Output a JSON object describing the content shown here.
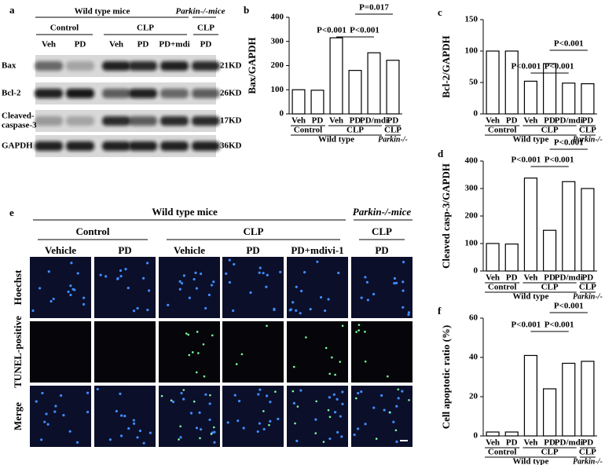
{
  "blot": {
    "label": "a",
    "header": "Wild type mice",
    "header2": "Parkin-/-mice",
    "groups": [
      "Control",
      "CLP",
      "CLP"
    ],
    "lanes": [
      "Veh",
      "PD",
      "Veh",
      "PD",
      "PD+mdi",
      "PD"
    ],
    "rows": [
      "Bax",
      "Bcl-2",
      [
        "Cleaved-",
        "caspase-3"
      ],
      "GAPDH"
    ],
    "sizes": [
      "21KD",
      "26KD",
      "17KD",
      "36KD"
    ]
  },
  "chart_data": [
    {
      "type": "bar",
      "label": "b",
      "ylabel": "Bax/GAPDH",
      "categories": [
        "Veh",
        "PD",
        "Veh",
        "PD",
        "PD/mdi",
        "PD"
      ],
      "values": [
        100,
        98,
        315,
        180,
        253,
        222
      ],
      "ylim": [
        0,
        400
      ],
      "yticks": [
        0,
        100,
        200,
        300,
        400
      ],
      "color": "#ffffff",
      "group_labels": [
        "Control",
        "CLP",
        "CLP"
      ],
      "group_labels2": [
        "Wild type",
        "Parkin-/-"
      ],
      "annotations": [
        "P<0.001",
        "P<0.001",
        "P=0.017"
      ]
    },
    {
      "type": "bar",
      "label": "c",
      "ylabel": "Bcl-2/GAPDH",
      "categories": [
        "Veh",
        "PD",
        "Veh",
        "PD",
        "PD/mdi",
        "PD"
      ],
      "values": [
        100,
        100,
        52,
        80,
        49,
        48
      ],
      "ylim": [
        0,
        150
      ],
      "yticks": [
        0,
        50,
        100,
        150
      ],
      "color": "#ffffff",
      "group_labels": [
        "Control",
        "CLP",
        "CLP"
      ],
      "group_labels2": [
        "Wild type",
        "Parkin-/-"
      ],
      "annotations": [
        "P<0.001",
        "P<0.001",
        "P<0.001"
      ]
    },
    {
      "type": "bar",
      "label": "d",
      "ylabel": "Cleaved casp-3/GAPDH",
      "categories": [
        "Veh",
        "PD",
        "Veh",
        "PD",
        "PD/mdi",
        "PD"
      ],
      "values": [
        100,
        98,
        338,
        148,
        325,
        300
      ],
      "ylim": [
        0,
        400
      ],
      "yticks": [
        0,
        100,
        200,
        300,
        400
      ],
      "color": "#ffffff",
      "group_labels": [
        "Control",
        "CLP",
        "CLP"
      ],
      "group_labels2": [
        "Wild type",
        "Parkin-/-"
      ],
      "annotations": [
        "P<0.001",
        "P<0.001",
        "P<0.001"
      ]
    },
    {
      "type": "bar",
      "label": "f",
      "ylabel": "Cell apoptotic ratio (%)",
      "categories": [
        "Veh",
        "PD",
        "Veh",
        "PD",
        "PD/mdi",
        "PD"
      ],
      "values": [
        2,
        2,
        41,
        24,
        37,
        38
      ],
      "ylim": [
        0,
        60
      ],
      "yticks": [
        0,
        20,
        40,
        60
      ],
      "color": "#ffffff",
      "group_labels": [
        "Control",
        "CLP",
        "CLP"
      ],
      "group_labels2": [
        "Wild type",
        "Parkin-/-"
      ],
      "annotations": [
        "P<0.001",
        "P<0.001",
        "P<0.001"
      ]
    }
  ],
  "micro": {
    "label": "e",
    "header": "Wild  type mice",
    "header2": "Parkin-/-mice",
    "groups": [
      "Control",
      "CLP",
      "CLP"
    ],
    "columns": [
      "Vehicle",
      "PD",
      "Vehicle",
      "PD",
      "PD+mdivi-1",
      "PD"
    ],
    "rows": [
      "Hoechst",
      "TUNEL-positive",
      "Merge"
    ]
  }
}
